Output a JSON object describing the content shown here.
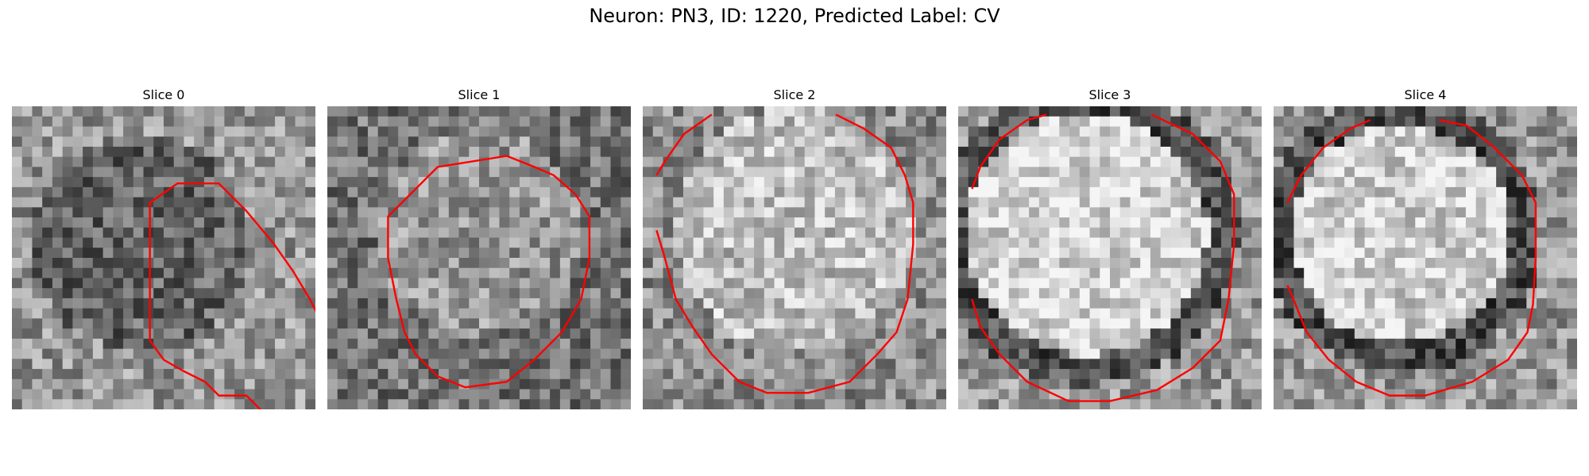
{
  "figure": {
    "suptitle": "Neuron: PN3, ID: 1220, Predicted Label: CV"
  },
  "panels": [
    {
      "title": "Slice 0"
    },
    {
      "title": "Slice 1"
    },
    {
      "title": "Slice 2"
    },
    {
      "title": "Slice 3"
    },
    {
      "title": "Slice 4"
    }
  ],
  "colors": {
    "contour": "#ff0000",
    "colormap": "grayscale"
  }
}
